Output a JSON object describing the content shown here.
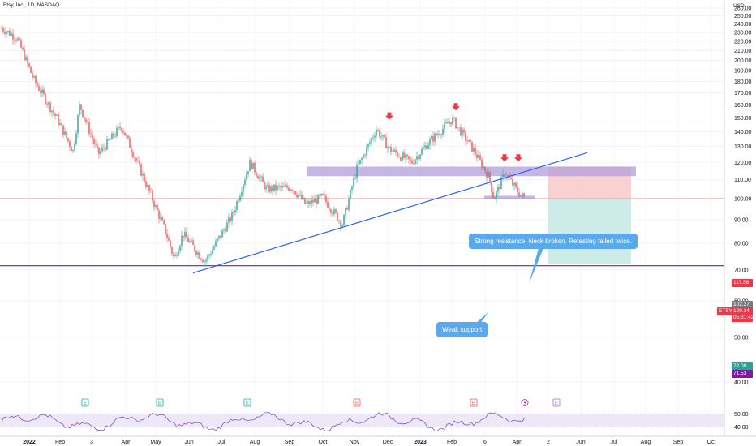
{
  "header": {
    "title": "Etsy, Inc., 1D, NASDAQ",
    "currency": "USD"
  },
  "colors": {
    "up": "#26a69a",
    "down": "#ef5350",
    "resistance_zone": "#b39ddb",
    "trendline": "#2962ff",
    "support_line": "#7b1fa2",
    "callout": "#5aa9ec",
    "stop_zone": "#f8cccc",
    "target_zone": "#c9eae4",
    "price_tag": "#f23645"
  },
  "chart_data": {
    "type": "candlestick",
    "y_axis": {
      "scale": "log",
      "range": [
        37,
        262
      ],
      "ticks": [
        260,
        250,
        240,
        230,
        220,
        210,
        200,
        190,
        180,
        170,
        160,
        150,
        140,
        130,
        120,
        110,
        100,
        90,
        80,
        70,
        60,
        50,
        40
      ]
    },
    "x_axis": {
      "ticks": [
        "2022",
        "Feb",
        "3",
        "Apr",
        "May",
        "Jun",
        "Jul",
        "Aug",
        "Sep",
        "Oct",
        "Nov",
        "Dec",
        "2023",
        "Feb",
        "6",
        "Apr",
        "2",
        "Jun",
        "Jul",
        "Aug",
        "Sep",
        "Oct"
      ]
    },
    "price_path": [
      {
        "date": "2021-12-22",
        "close": 235
      },
      {
        "date": "2022-01-05",
        "close": 224
      },
      {
        "date": "2022-01-20",
        "close": 182
      },
      {
        "date": "2022-02-10",
        "close": 150
      },
      {
        "date": "2022-02-25",
        "close": 127
      },
      {
        "date": "2022-03-03",
        "close": 160
      },
      {
        "date": "2022-03-20",
        "close": 125
      },
      {
        "date": "2022-04-10",
        "close": 144
      },
      {
        "date": "2022-05-01",
        "close": 110
      },
      {
        "date": "2022-05-20",
        "close": 85
      },
      {
        "date": "2022-05-28",
        "close": 74
      },
      {
        "date": "2022-06-05",
        "close": 84
      },
      {
        "date": "2022-06-25",
        "close": 73
      },
      {
        "date": "2022-07-20",
        "close": 92
      },
      {
        "date": "2022-08-05",
        "close": 120
      },
      {
        "date": "2022-08-20",
        "close": 105
      },
      {
        "date": "2022-09-12",
        "close": 106
      },
      {
        "date": "2022-09-25",
        "close": 97
      },
      {
        "date": "2022-10-10",
        "close": 101
      },
      {
        "date": "2022-10-28",
        "close": 88
      },
      {
        "date": "2022-11-10",
        "close": 116
      },
      {
        "date": "2022-11-28",
        "close": 142
      },
      {
        "date": "2022-12-10",
        "close": 128
      },
      {
        "date": "2022-12-30",
        "close": 120
      },
      {
        "date": "2023-01-15",
        "close": 133
      },
      {
        "date": "2023-02-05",
        "close": 149
      },
      {
        "date": "2023-02-25",
        "close": 127
      },
      {
        "date": "2023-03-10",
        "close": 112
      },
      {
        "date": "2023-03-15",
        "close": 100
      },
      {
        "date": "2023-03-25",
        "close": 114
      },
      {
        "date": "2023-04-05",
        "close": 104
      },
      {
        "date": "2023-04-12",
        "close": 100.24
      }
    ],
    "rsi_range": [
      36,
      52
    ],
    "rsi_ticks": [
      50,
      40
    ],
    "annotations": {
      "resistance_zone": [
        112,
        117.5
      ],
      "trendline": [
        {
          "date": "2022-06-01",
          "value": 69
        },
        {
          "date": "2023-05-01",
          "value": 126
        }
      ],
      "support_line": 71.53,
      "weak_support": 100.7,
      "risk_reward": {
        "entry": 100.24,
        "stop": 117.56,
        "target": 72.08
      },
      "arrows_at": [
        {
          "date": "2022-12-01",
          "value": 148
        },
        {
          "date": "2023-02-05",
          "value": 155
        },
        {
          "date": "2023-03-20",
          "value": 120
        },
        {
          "date": "2023-04-03",
          "value": 120
        }
      ],
      "earnings_events": [
        "E",
        "E",
        "E",
        "E",
        "E",
        "E"
      ],
      "callout_resistance": "Strong resistance. Neck broken. Retesting failed twice.",
      "callout_support": "Weak support"
    },
    "price_labels": {
      "stop": "117.56",
      "last_close_ref": "102.27",
      "symbol": "ETSY",
      "price": "100.24",
      "countdown": "05:31:42",
      "target": "72.08",
      "support": "71.53"
    }
  }
}
